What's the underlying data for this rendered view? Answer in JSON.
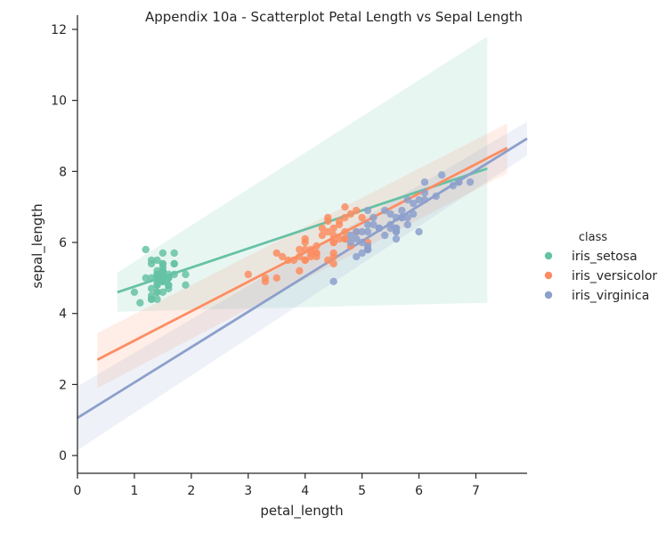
{
  "chart_data": {
    "type": "scatter",
    "title": "Appendix 10a - Scatterplot Petal Length vs Sepal Length",
    "xlabel": "petal_length",
    "ylabel": "sepal_length",
    "xlim": [
      0,
      7.9
    ],
    "ylim": [
      -0.5,
      12.4
    ],
    "xticks": [
      0,
      1,
      2,
      3,
      4,
      5,
      6,
      7
    ],
    "yticks": [
      0,
      2,
      4,
      6,
      8,
      10,
      12
    ],
    "grid": false,
    "legend": {
      "title": "class",
      "placement": "right"
    },
    "series": [
      {
        "name": "iris_setosa",
        "color": "#66c2a5",
        "points": [
          [
            1.4,
            5.1
          ],
          [
            1.4,
            4.9
          ],
          [
            1.3,
            4.7
          ],
          [
            1.5,
            4.6
          ],
          [
            1.4,
            5.0
          ],
          [
            1.7,
            5.4
          ],
          [
            1.4,
            4.6
          ],
          [
            1.5,
            5.0
          ],
          [
            1.4,
            4.4
          ],
          [
            1.5,
            4.9
          ],
          [
            1.5,
            5.4
          ],
          [
            1.6,
            4.8
          ],
          [
            1.4,
            4.8
          ],
          [
            1.1,
            4.3
          ],
          [
            1.2,
            5.8
          ],
          [
            1.5,
            5.7
          ],
          [
            1.3,
            5.4
          ],
          [
            1.4,
            5.1
          ],
          [
            1.7,
            5.7
          ],
          [
            1.5,
            5.1
          ],
          [
            1.7,
            5.4
          ],
          [
            1.5,
            5.1
          ],
          [
            1.0,
            4.6
          ],
          [
            1.7,
            5.1
          ],
          [
            1.9,
            4.8
          ],
          [
            1.6,
            5.0
          ],
          [
            1.6,
            5.0
          ],
          [
            1.5,
            5.2
          ],
          [
            1.4,
            5.2
          ],
          [
            1.6,
            4.7
          ],
          [
            1.6,
            4.8
          ],
          [
            1.5,
            5.4
          ],
          [
            1.5,
            5.2
          ],
          [
            1.4,
            5.5
          ],
          [
            1.5,
            4.9
          ],
          [
            1.2,
            5.0
          ],
          [
            1.3,
            5.5
          ],
          [
            1.5,
            4.9
          ],
          [
            1.3,
            4.4
          ],
          [
            1.5,
            5.1
          ],
          [
            1.3,
            5.0
          ],
          [
            1.3,
            4.5
          ],
          [
            1.3,
            4.4
          ],
          [
            1.6,
            5.0
          ],
          [
            1.9,
            5.1
          ],
          [
            1.4,
            4.8
          ],
          [
            1.6,
            5.1
          ],
          [
            1.4,
            4.6
          ],
          [
            1.5,
            5.3
          ],
          [
            1.4,
            5.0
          ]
        ],
        "regression": {
          "x_range": [
            0.7,
            7.2
          ],
          "ci_low": [
            4.05,
            4.3
          ],
          "ci_high": [
            5.15,
            11.8
          ]
        }
      },
      {
        "name": "iris_versicolor",
        "color": "#fc8d62",
        "points": [
          [
            4.7,
            7.0
          ],
          [
            4.5,
            6.4
          ],
          [
            4.9,
            6.9
          ],
          [
            4.0,
            5.5
          ],
          [
            4.6,
            6.5
          ],
          [
            4.5,
            5.7
          ],
          [
            4.7,
            6.3
          ],
          [
            3.3,
            4.9
          ],
          [
            4.6,
            6.6
          ],
          [
            3.9,
            5.2
          ],
          [
            3.5,
            5.0
          ],
          [
            4.2,
            5.9
          ],
          [
            4.0,
            6.0
          ],
          [
            4.7,
            6.1
          ],
          [
            3.6,
            5.6
          ],
          [
            4.4,
            6.7
          ],
          [
            4.5,
            5.6
          ],
          [
            4.1,
            5.8
          ],
          [
            4.5,
            6.2
          ],
          [
            3.9,
            5.6
          ],
          [
            4.8,
            5.9
          ],
          [
            4.0,
            6.1
          ],
          [
            4.9,
            6.3
          ],
          [
            4.7,
            6.1
          ],
          [
            4.3,
            6.4
          ],
          [
            4.4,
            6.6
          ],
          [
            4.8,
            6.8
          ],
          [
            5.0,
            6.7
          ],
          [
            4.5,
            6.0
          ],
          [
            3.5,
            5.7
          ],
          [
            3.8,
            5.5
          ],
          [
            3.7,
            5.5
          ],
          [
            3.9,
            5.8
          ],
          [
            5.1,
            6.0
          ],
          [
            4.5,
            5.4
          ],
          [
            4.5,
            6.0
          ],
          [
            4.7,
            6.7
          ],
          [
            4.4,
            6.3
          ],
          [
            4.1,
            5.6
          ],
          [
            4.0,
            5.5
          ],
          [
            4.4,
            5.5
          ],
          [
            4.6,
            6.1
          ],
          [
            4.0,
            5.8
          ],
          [
            3.3,
            5.0
          ],
          [
            4.2,
            5.6
          ],
          [
            4.2,
            5.7
          ],
          [
            4.2,
            5.7
          ],
          [
            4.3,
            6.2
          ],
          [
            3.0,
            5.1
          ],
          [
            4.1,
            5.7
          ]
        ],
        "regression": {
          "x_range": [
            0.35,
            7.55
          ],
          "ci_low": [
            1.9,
            7.95
          ],
          "ci_high": [
            3.45,
            9.35
          ]
        }
      },
      {
        "name": "iris_virginica",
        "color": "#8da0cb",
        "points": [
          [
            6.0,
            6.3
          ],
          [
            5.1,
            5.8
          ],
          [
            5.9,
            7.1
          ],
          [
            5.6,
            6.3
          ],
          [
            5.8,
            6.5
          ],
          [
            6.6,
            7.6
          ],
          [
            4.5,
            4.9
          ],
          [
            6.3,
            7.3
          ],
          [
            5.8,
            6.7
          ],
          [
            6.1,
            7.2
          ],
          [
            5.1,
            6.5
          ],
          [
            5.3,
            6.4
          ],
          [
            5.5,
            6.8
          ],
          [
            5.0,
            5.7
          ],
          [
            5.1,
            5.8
          ],
          [
            5.3,
            6.4
          ],
          [
            5.5,
            6.5
          ],
          [
            6.7,
            7.7
          ],
          [
            6.9,
            7.7
          ],
          [
            5.0,
            6.0
          ],
          [
            5.7,
            6.9
          ],
          [
            4.9,
            5.6
          ],
          [
            6.7,
            7.7
          ],
          [
            4.9,
            6.3
          ],
          [
            5.7,
            6.7
          ],
          [
            6.0,
            7.2
          ],
          [
            4.8,
            6.2
          ],
          [
            4.9,
            6.1
          ],
          [
            5.6,
            6.4
          ],
          [
            5.8,
            7.2
          ],
          [
            6.1,
            7.4
          ],
          [
            6.4,
            7.9
          ],
          [
            5.6,
            6.4
          ],
          [
            5.1,
            6.3
          ],
          [
            5.6,
            6.1
          ],
          [
            6.1,
            7.7
          ],
          [
            5.6,
            6.3
          ],
          [
            5.5,
            6.4
          ],
          [
            4.8,
            6.0
          ],
          [
            5.4,
            6.9
          ],
          [
            5.6,
            6.7
          ],
          [
            5.1,
            6.9
          ],
          [
            5.1,
            5.8
          ],
          [
            5.9,
            6.8
          ],
          [
            5.7,
            6.7
          ],
          [
            5.2,
            6.7
          ],
          [
            5.0,
            6.3
          ],
          [
            5.2,
            6.5
          ],
          [
            5.4,
            6.2
          ],
          [
            5.1,
            5.9
          ]
        ],
        "regression": {
          "x_range": [
            0.0,
            7.9
          ],
          "ci_low": [
            0.15,
            8.45
          ],
          "ci_high": [
            1.95,
            9.4
          ]
        }
      }
    ]
  }
}
